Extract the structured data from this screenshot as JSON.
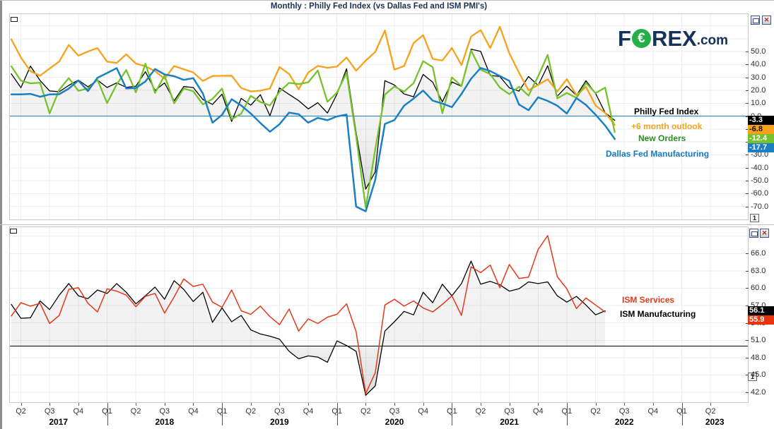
{
  "window": {
    "title": "Monthly : Philly Fed Index (vs Dallas Fed and ISM PMI's)",
    "pane_number": "1",
    "logo": {
      "part1": "F",
      "o_symbol": "€",
      "part2": "REX",
      "suffix": ".com"
    }
  },
  "chart_data": [
    {
      "type": "line",
      "panel": "top",
      "frequency": "monthly",
      "x_range_visible": [
        "Q2 2017",
        "Q2 2023"
      ],
      "data_span": [
        "2017-03",
        "2022-06"
      ],
      "ylim": [
        -80.0,
        79.0
      ],
      "grid": true,
      "yticks_labeled": [
        50,
        40,
        30,
        20,
        10,
        0,
        -10,
        -20,
        -30,
        -40,
        -50,
        -60,
        -70
      ],
      "yticks_grid": [
        70,
        60,
        50,
        40,
        30,
        20,
        10,
        0,
        -10,
        -20,
        -30,
        -40,
        -50,
        -60,
        -70
      ],
      "reference_line": {
        "value": 0,
        "color": "#1B7FC4"
      },
      "fill_series": 0,
      "legend_position": "right-inline",
      "series": [
        {
          "name": "Philly Fed Index",
          "color": "#000000",
          "width": 1.3,
          "values": [
            32.8,
            22.0,
            38.8,
            27.6,
            19.5,
            18.9,
            23.8,
            27.9,
            22.7,
            27.9,
            22.2,
            25.8,
            22.3,
            23.2,
            34.4,
            19.9,
            25.7,
            11.9,
            22.9,
            22.2,
            12.9,
            9.1,
            17.0,
            -4.1,
            13.7,
            8.5,
            16.6,
            0.3,
            21.8,
            16.8,
            12.0,
            5.6,
            10.4,
            2.4,
            17.0,
            36.7,
            -12.7,
            -56.6,
            -43.1,
            27.5,
            24.1,
            17.2,
            15.0,
            32.3,
            26.3,
            11.1,
            26.5,
            23.1,
            51.8,
            50.2,
            31.5,
            30.7,
            21.9,
            19.4,
            30.7,
            23.8,
            39.0,
            15.4,
            23.2,
            16.0,
            27.4,
            17.6,
            2.6,
            -3.3
          ]
        },
        {
          "name": "+6 month outlook",
          "color": "#F7A21A",
          "width": 2.3,
          "values": [
            59.5,
            45.4,
            34.8,
            31.3,
            36.9,
            42.3,
            55.2,
            46.8,
            50.1,
            52.7,
            42.2,
            41.2,
            47.9,
            40.7,
            38.7,
            34.8,
            29.0,
            38.8,
            36.3,
            33.8,
            27.2,
            31.1,
            31.2,
            31.3,
            21.8,
            19.1,
            19.7,
            21.4,
            38.0,
            32.6,
            20.8,
            33.8,
            38.9,
            37.4,
            38.4,
            45.4,
            35.2,
            43.0,
            49.7,
            66.3,
            36.0,
            38.8,
            56.6,
            62.7,
            44.3,
            43.1,
            52.8,
            39.5,
            61.6,
            66.6,
            52.7,
            69.2,
            48.6,
            33.7,
            20.0,
            24.2,
            28.5,
            19.1,
            28.7,
            16.2,
            22.7,
            8.2,
            2.5,
            -6.8
          ]
        },
        {
          "name": "New Orders",
          "color": "#76C22C",
          "width": 2.3,
          "values": [
            38.6,
            27.4,
            25.4,
            25.9,
            2.1,
            20.4,
            29.5,
            19.6,
            21.4,
            28.2,
            10.1,
            24.5,
            35.7,
            18.4,
            40.6,
            17.9,
            31.4,
            9.9,
            21.4,
            19.3,
            9.1,
            13.3,
            21.3,
            -2.4,
            1.9,
            15.7,
            11.0,
            8.3,
            18.9,
            25.8,
            24.8,
            26.2,
            35.3,
            11.1,
            18.2,
            33.6,
            -15.5,
            -70.9,
            -25.7,
            16.7,
            23.0,
            19.0,
            25.5,
            42.6,
            37.9,
            2.3,
            30.0,
            23.4,
            50.9,
            36.0,
            32.5,
            22.2,
            17.0,
            22.8,
            15.9,
            30.8,
            47.4,
            13.7,
            17.9,
            14.2,
            25.8,
            17.8,
            22.1,
            -12.4
          ]
        },
        {
          "name": "Dallas Fed Manufacturing",
          "color": "#1B7FC4",
          "width": 2.5,
          "values": [
            16.9,
            16.8,
            17.2,
            15.0,
            16.8,
            17.0,
            21.3,
            27.6,
            19.4,
            29.7,
            33.4,
            37.2,
            21.4,
            21.8,
            26.8,
            36.5,
            32.3,
            30.9,
            28.1,
            29.4,
            17.6,
            -5.1,
            1.0,
            13.1,
            8.3,
            2.0,
            -5.3,
            -12.1,
            -6.3,
            2.7,
            1.5,
            -5.1,
            -1.3,
            -3.2,
            -0.2,
            1.2,
            -70.0,
            -73.7,
            -49.2,
            -6.1,
            -3.0,
            8.0,
            13.6,
            19.8,
            12.0,
            9.7,
            7.0,
            17.2,
            28.9,
            37.3,
            34.9,
            31.1,
            27.3,
            9.0,
            4.6,
            14.6,
            11.8,
            8.1,
            2.0,
            14.0,
            8.7,
            1.1,
            -7.3,
            -17.7
          ]
        }
      ],
      "last_values": [
        {
          "value": -3.3,
          "bg": "#000000",
          "fg": "#ffffff"
        },
        {
          "value": -6.8,
          "bg": "#F7A21A",
          "fg": "#111111"
        },
        {
          "value": -12.4,
          "bg": "#76C22C",
          "fg": "#ffffff"
        },
        {
          "value": -17.7,
          "bg": "#1B7FC4",
          "fg": "#ffffff"
        }
      ],
      "x_axis": {
        "quarters": [
          {
            "m": 1,
            "label": "Q2"
          },
          {
            "m": 4,
            "label": "Q3"
          },
          {
            "m": 7,
            "label": "Q4"
          },
          {
            "m": 10,
            "label": "Q1"
          },
          {
            "m": 13,
            "label": "Q2"
          },
          {
            "m": 16,
            "label": "Q3"
          },
          {
            "m": 19,
            "label": "Q4"
          },
          {
            "m": 22,
            "label": "Q1"
          },
          {
            "m": 25,
            "label": "Q2"
          },
          {
            "m": 28,
            "label": "Q3"
          },
          {
            "m": 31,
            "label": "Q4"
          },
          {
            "m": 34,
            "label": "Q1"
          },
          {
            "m": 37,
            "label": "Q2"
          },
          {
            "m": 40,
            "label": "Q3"
          },
          {
            "m": 43,
            "label": "Q4"
          },
          {
            "m": 46,
            "label": "Q1"
          },
          {
            "m": 49,
            "label": "Q2"
          },
          {
            "m": 52,
            "label": "Q3"
          },
          {
            "m": 55,
            "label": "Q4"
          },
          {
            "m": 58,
            "label": "Q1"
          },
          {
            "m": 61,
            "label": "Q2"
          },
          {
            "m": 64,
            "label": "Q3"
          },
          {
            "m": 67,
            "label": "Q4"
          },
          {
            "m": 70,
            "label": "Q1"
          },
          {
            "m": 73,
            "label": "Q2"
          }
        ],
        "year_separators_m": [
          10,
          22,
          34,
          46,
          58,
          70
        ],
        "years": [
          {
            "label": "2017",
            "from_m": -0.15,
            "to_m": 10
          },
          {
            "label": "2018",
            "from_m": 10,
            "to_m": 22
          },
          {
            "label": "2019",
            "from_m": 22,
            "to_m": 34
          },
          {
            "label": "2020",
            "from_m": 34,
            "to_m": 46
          },
          {
            "label": "2021",
            "from_m": 46,
            "to_m": 58
          },
          {
            "label": "2022",
            "from_m": 58,
            "to_m": 70
          },
          {
            "label": "2023",
            "from_m": 70,
            "to_m": 76.9
          }
        ]
      }
    },
    {
      "type": "line",
      "panel": "bottom",
      "frequency": "monthly",
      "data_span": [
        "2017-03",
        "2022-05"
      ],
      "ylim": [
        40.3,
        70.55
      ],
      "grid": true,
      "yticks_labeled": [
        66,
        63,
        60,
        57,
        54,
        51,
        48,
        45,
        42
      ],
      "yticks_grid": [
        69,
        66,
        63,
        60,
        57,
        54,
        51,
        48,
        45,
        42
      ],
      "reference_line": {
        "value": 50,
        "color": "#000000"
      },
      "fill_series": 0,
      "x_axis": "shared",
      "series": [
        {
          "name": "ISM Manufacturing",
          "color": "#000000",
          "width": 1.3,
          "values": [
            57.2,
            54.8,
            54.9,
            57.8,
            56.3,
            58.8,
            60.8,
            58.7,
            58.2,
            59.7,
            59.1,
            60.8,
            59.3,
            57.3,
            58.7,
            60.2,
            58.1,
            61.3,
            59.8,
            57.7,
            59.3,
            54.1,
            56.6,
            54.2,
            55.3,
            52.8,
            52.1,
            51.7,
            51.2,
            49.1,
            47.8,
            48.3,
            48.1,
            47.2,
            50.9,
            50.1,
            49.1,
            41.5,
            43.1,
            52.6,
            54.2,
            56.0,
            55.4,
            59.3,
            57.5,
            60.7,
            58.7,
            60.8,
            64.7,
            60.7,
            61.2,
            60.6,
            59.5,
            59.9,
            61.1,
            60.8,
            61.1,
            58.7,
            57.6,
            58.6,
            57.1,
            55.4,
            56.1
          ]
        },
        {
          "name": "ISM Services",
          "color": "#E2391B",
          "width": 1.5,
          "values": [
            55.2,
            57.5,
            56.9,
            57.4,
            53.9,
            55.3,
            59.8,
            60.1,
            57.4,
            55.9,
            59.9,
            59.5,
            58.8,
            56.8,
            58.6,
            59.1,
            55.7,
            58.5,
            61.6,
            60.3,
            60.7,
            57.6,
            56.7,
            59.7,
            56.1,
            55.5,
            56.9,
            55.1,
            53.7,
            56.4,
            52.6,
            54.7,
            53.9,
            55.0,
            55.5,
            57.3,
            52.5,
            41.8,
            45.4,
            57.1,
            58.1,
            56.9,
            57.8,
            56.6,
            55.9,
            57.2,
            58.7,
            55.3,
            63.7,
            62.7,
            64.0,
            60.1,
            64.1,
            61.7,
            61.9,
            66.7,
            69.1,
            62.0,
            59.9,
            56.5,
            58.3,
            57.1,
            55.9
          ]
        }
      ],
      "last_values": [
        {
          "value": 56.1,
          "bg": "#000000",
          "fg": "#ffffff"
        },
        {
          "value": 55.9,
          "bg": "#E8330C",
          "fg": "#ffffff"
        }
      ]
    }
  ]
}
